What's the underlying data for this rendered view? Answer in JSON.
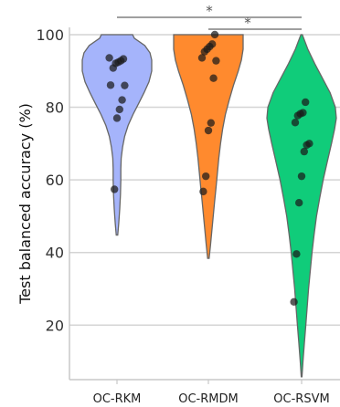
{
  "chart_data": {
    "type": "violin",
    "ylabel": "Test balanced accuracy (%)",
    "ylim": [
      5,
      102
    ],
    "yticks": [
      20,
      40,
      60,
      80,
      100
    ],
    "grid": "horizontal",
    "categories": [
      "OC-RKM",
      "OC-RMDM",
      "OC-RSVM"
    ],
    "colors": [
      "#a5b4fb",
      "#ff8a2e",
      "#10cc7a"
    ],
    "series": [
      {
        "category": "OC-RKM",
        "values": [
          93.6,
          93.3,
          92.8,
          92.4,
          92.1,
          90.8,
          86.1,
          86.0,
          82.0,
          79.4,
          77.0,
          57.4
        ],
        "range": [
          44.8,
          100
        ],
        "profile": [
          [
            44.8,
            0.02
          ],
          [
            48,
            0.05
          ],
          [
            52,
            0.08
          ],
          [
            56,
            0.1
          ],
          [
            60,
            0.11
          ],
          [
            63,
            0.11
          ],
          [
            66,
            0.12
          ],
          [
            69,
            0.16
          ],
          [
            72,
            0.22
          ],
          [
            75,
            0.32
          ],
          [
            78,
            0.46
          ],
          [
            81,
            0.62
          ],
          [
            84,
            0.78
          ],
          [
            87,
            0.92
          ],
          [
            90,
            1.0
          ],
          [
            93,
            1.0
          ],
          [
            95,
            0.95
          ],
          [
            97,
            0.8
          ],
          [
            99,
            0.5
          ],
          [
            100,
            0.45
          ]
        ]
      },
      {
        "category": "OC-RMDM",
        "values": [
          100.0,
          97.4,
          96.7,
          96.0,
          95.3,
          93.6,
          92.8,
          88.0,
          75.7,
          73.6,
          61.0,
          56.8
        ],
        "range": [
          38.4,
          100
        ],
        "profile": [
          [
            38.4,
            0.02
          ],
          [
            42,
            0.06
          ],
          [
            46,
            0.1
          ],
          [
            50,
            0.14
          ],
          [
            54,
            0.18
          ],
          [
            58,
            0.22
          ],
          [
            62,
            0.26
          ],
          [
            66,
            0.3
          ],
          [
            70,
            0.35
          ],
          [
            74,
            0.41
          ],
          [
            78,
            0.49
          ],
          [
            82,
            0.6
          ],
          [
            86,
            0.72
          ],
          [
            90,
            0.86
          ],
          [
            93,
            0.95
          ],
          [
            96,
            1.0
          ],
          [
            98,
            1.0
          ],
          [
            100,
            1.0
          ]
        ]
      },
      {
        "category": "OC-RSVM",
        "values": [
          81.4,
          78.5,
          78.2,
          77.7,
          75.8,
          70.0,
          69.6,
          67.8,
          61.0,
          53.7,
          39.6,
          26.4
        ],
        "range": [
          5.8,
          100
        ],
        "profile": [
          [
            5.8,
            0.01
          ],
          [
            10,
            0.04
          ],
          [
            15,
            0.08
          ],
          [
            20,
            0.12
          ],
          [
            25,
            0.16
          ],
          [
            30,
            0.2
          ],
          [
            35,
            0.25
          ],
          [
            40,
            0.3
          ],
          [
            45,
            0.36
          ],
          [
            50,
            0.43
          ],
          [
            55,
            0.52
          ],
          [
            60,
            0.62
          ],
          [
            65,
            0.74
          ],
          [
            70,
            0.86
          ],
          [
            74,
            0.95
          ],
          [
            77,
            1.0
          ],
          [
            80,
            0.97
          ],
          [
            84,
            0.82
          ],
          [
            88,
            0.6
          ],
          [
            92,
            0.38
          ],
          [
            96,
            0.18
          ],
          [
            100,
            0.02
          ]
        ]
      }
    ],
    "significance": [
      {
        "between": [
          0,
          2
        ],
        "label": "*",
        "level": 1
      },
      {
        "between": [
          1,
          2
        ],
        "label": "*",
        "level": 2
      }
    ]
  }
}
